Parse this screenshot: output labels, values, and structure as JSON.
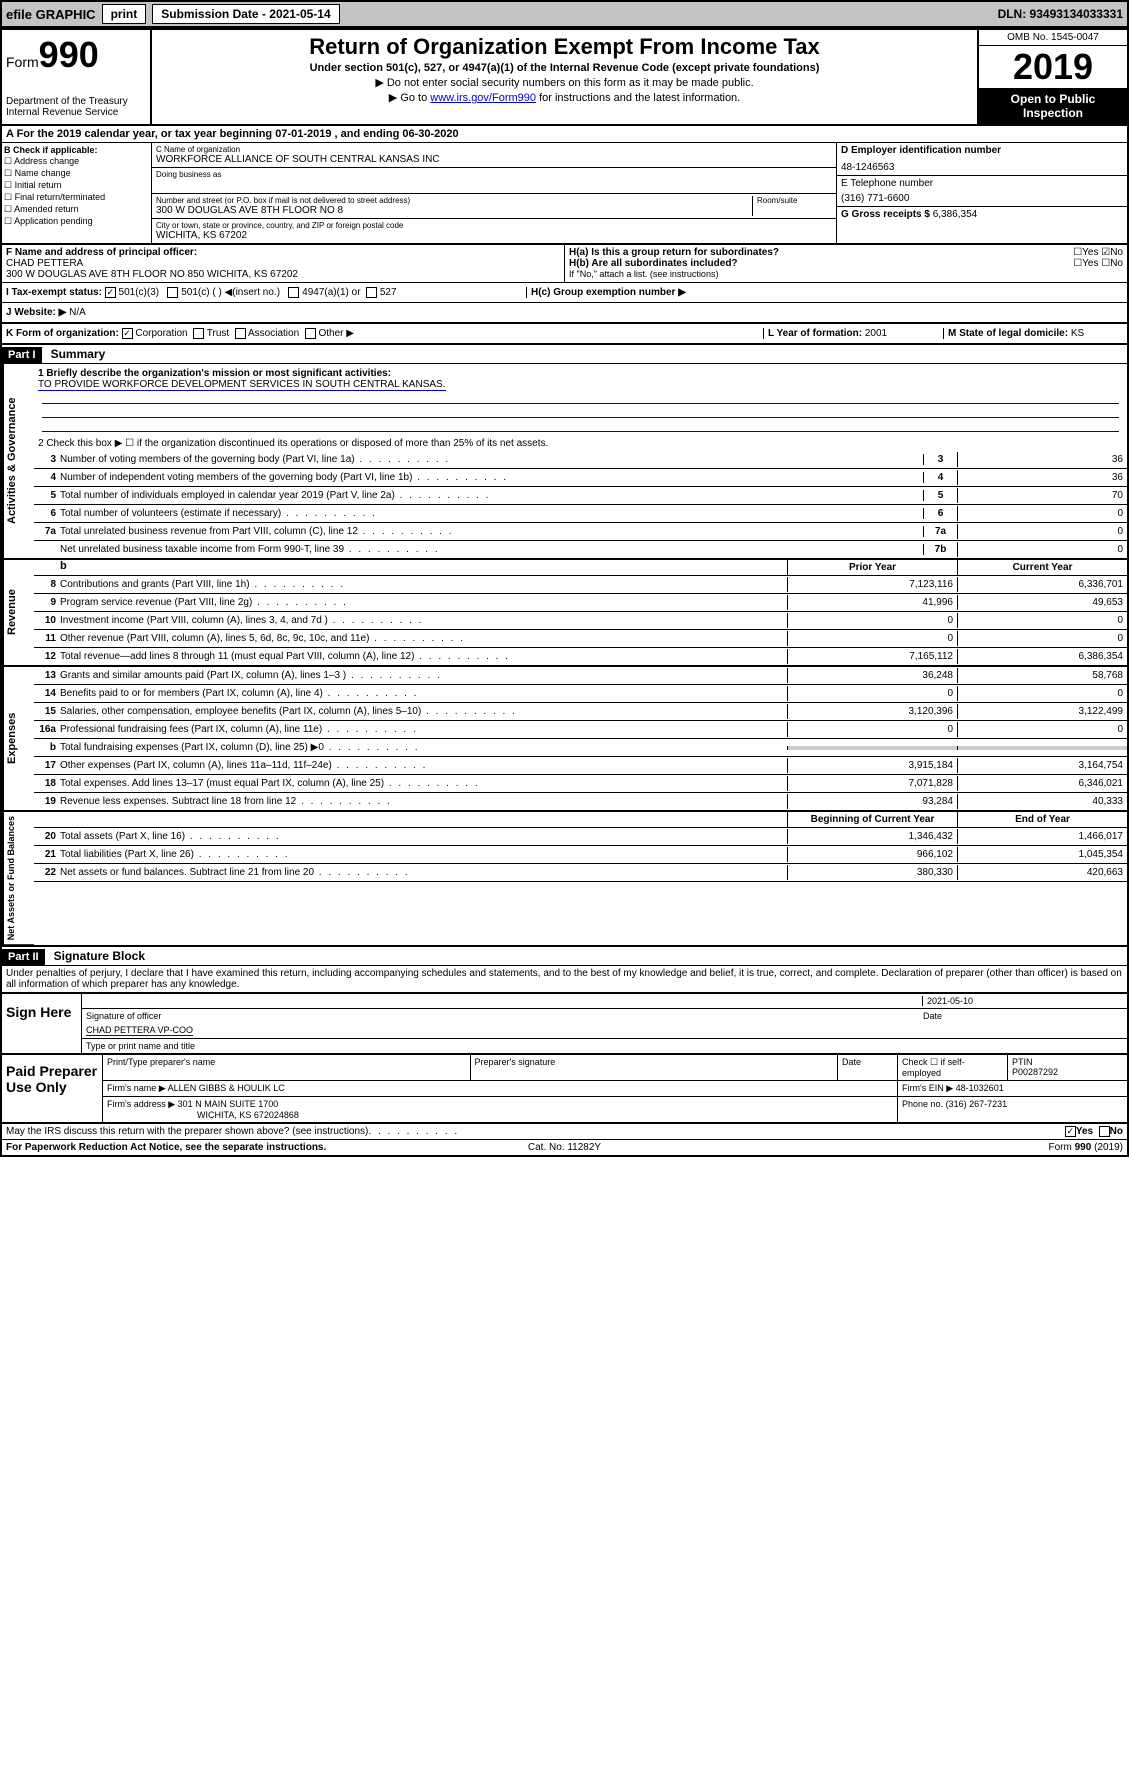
{
  "topbar": {
    "efile": "efile GRAPHIC",
    "print": "print",
    "subdate_lbl": "Submission Date - 2021-05-14",
    "dln": "DLN: 93493134033331"
  },
  "header": {
    "form_label": "Form",
    "form_num": "990",
    "dept": "Department of the Treasury Internal Revenue Service",
    "title": "Return of Organization Exempt From Income Tax",
    "subtitle": "Under section 501(c), 527, or 4947(a)(1) of the Internal Revenue Code (except private foundations)",
    "note1": "▶ Do not enter social security numbers on this form as it may be made public.",
    "note2_pre": "▶ Go to ",
    "note2_link": "www.irs.gov/Form990",
    "note2_post": " for instructions and the latest information.",
    "omb": "OMB No. 1545-0047",
    "year": "2019",
    "badge": "Open to Public Inspection"
  },
  "period": "A For the 2019 calendar year, or tax year beginning 07-01-2019   , and ending 06-30-2020",
  "boxB": {
    "title": "B Check if applicable:",
    "items": [
      "Address change",
      "Name change",
      "Initial return",
      "Final return/terminated",
      "Amended return",
      "Application pending"
    ]
  },
  "boxC": {
    "name_lbl": "C Name of organization",
    "name": "WORKFORCE ALLIANCE OF SOUTH CENTRAL KANSAS INC",
    "dba_lbl": "Doing business as",
    "addr_lbl": "Number and street (or P.O. box if mail is not delivered to street address)",
    "room_lbl": "Room/suite",
    "addr": "300 W DOUGLAS AVE 8TH FLOOR NO 8",
    "city_lbl": "City or town, state or province, country, and ZIP or foreign postal code",
    "city": "WICHITA, KS  67202"
  },
  "boxD": {
    "ein_lbl": "D Employer identification number",
    "ein": "48-1246563",
    "tel_lbl": "E Telephone number",
    "tel": "(316) 771-6600",
    "gross_lbl": "G Gross receipts $",
    "gross": "6,386,354"
  },
  "boxF": {
    "lbl": "F  Name and address of principal officer:",
    "name": "CHAD PETTERA",
    "addr": "300 W DOUGLAS AVE 8TH FLOOR NO 850 WICHITA, KS  67202"
  },
  "boxH": {
    "ha": "H(a)  Is this a group return for subordinates?",
    "hb": "H(b)  Are all subordinates included?",
    "hb_note": "If \"No,\" attach a list. (see instructions)",
    "hc": "H(c)  Group exemption number ▶"
  },
  "taxstatus": {
    "lbl": "I    Tax-exempt status:",
    "opt1": "501(c)(3)",
    "opt2": "501(c) (  ) ◀(insert no.)",
    "opt3": "4947(a)(1) or",
    "opt4": "527"
  },
  "website": {
    "lbl": "J   Website: ▶",
    "val": "N/A"
  },
  "boxK": {
    "lbl": "K Form of organization:",
    "corp": "Corporation",
    "trust": "Trust",
    "assoc": "Association",
    "other": "Other ▶",
    "yof_lbl": "L Year of formation:",
    "yof": "2001",
    "domicile_lbl": "M State of legal domicile:",
    "domicile": "KS"
  },
  "part1": {
    "hdr": "Part I",
    "title": "Summary",
    "l1_lbl": "1  Briefly describe the organization's mission or most significant activities:",
    "l1_val": "TO PROVIDE WORKFORCE DEVELOPMENT SERVICES IN SOUTH CENTRAL KANSAS.",
    "l2": "2   Check this box ▶ ☐  if the organization discontinued its operations or disposed of more than 25% of its net assets.",
    "governance_label": "Activities & Governance",
    "revenue_label": "Revenue",
    "expenses_label": "Expenses",
    "netassets_label": "Net Assets or Fund Balances",
    "prior_year": "Prior Year",
    "current_year": "Current Year",
    "begin_year": "Beginning of Current Year",
    "end_year": "End of Year",
    "lines_gov": [
      {
        "n": "3",
        "d": "Number of voting members of the governing body (Part VI, line 1a)",
        "box": "3",
        "v": "36"
      },
      {
        "n": "4",
        "d": "Number of independent voting members of the governing body (Part VI, line 1b)",
        "box": "4",
        "v": "36"
      },
      {
        "n": "5",
        "d": "Total number of individuals employed in calendar year 2019 (Part V, line 2a)",
        "box": "5",
        "v": "70"
      },
      {
        "n": "6",
        "d": "Total number of volunteers (estimate if necessary)",
        "box": "6",
        "v": "0"
      },
      {
        "n": "7a",
        "d": "Total unrelated business revenue from Part VIII, column (C), line 12",
        "box": "7a",
        "v": "0"
      },
      {
        "n": "",
        "d": "Net unrelated business taxable income from Form 990-T, line 39",
        "box": "7b",
        "v": "0"
      }
    ],
    "lines_rev": [
      {
        "n": "8",
        "d": "Contributions and grants (Part VIII, line 1h)",
        "py": "7,123,116",
        "cy": "6,336,701"
      },
      {
        "n": "9",
        "d": "Program service revenue (Part VIII, line 2g)",
        "py": "41,996",
        "cy": "49,653"
      },
      {
        "n": "10",
        "d": "Investment income (Part VIII, column (A), lines 3, 4, and 7d )",
        "py": "0",
        "cy": "0"
      },
      {
        "n": "11",
        "d": "Other revenue (Part VIII, column (A), lines 5, 6d, 8c, 9c, 10c, and 11e)",
        "py": "0",
        "cy": "0"
      },
      {
        "n": "12",
        "d": "Total revenue—add lines 8 through 11 (must equal Part VIII, column (A), line 12)",
        "py": "7,165,112",
        "cy": "6,386,354"
      }
    ],
    "lines_exp": [
      {
        "n": "13",
        "d": "Grants and similar amounts paid (Part IX, column (A), lines 1–3 )",
        "py": "36,248",
        "cy": "58,768"
      },
      {
        "n": "14",
        "d": "Benefits paid to or for members (Part IX, column (A), line 4)",
        "py": "0",
        "cy": "0"
      },
      {
        "n": "15",
        "d": "Salaries, other compensation, employee benefits (Part IX, column (A), lines 5–10)",
        "py": "3,120,396",
        "cy": "3,122,499"
      },
      {
        "n": "16a",
        "d": "Professional fundraising fees (Part IX, column (A), line 11e)",
        "py": "0",
        "cy": "0"
      },
      {
        "n": "b",
        "d": "Total fundraising expenses (Part IX, column (D), line 25) ▶0",
        "py": "",
        "cy": ""
      },
      {
        "n": "17",
        "d": "Other expenses (Part IX, column (A), lines 11a–11d, 11f–24e)",
        "py": "3,915,184",
        "cy": "3,164,754"
      },
      {
        "n": "18",
        "d": "Total expenses. Add lines 13–17 (must equal Part IX, column (A), line 25)",
        "py": "7,071,828",
        "cy": "6,346,021"
      },
      {
        "n": "19",
        "d": "Revenue less expenses. Subtract line 18 from line 12",
        "py": "93,284",
        "cy": "40,333"
      }
    ],
    "lines_net": [
      {
        "n": "20",
        "d": "Total assets (Part X, line 16)",
        "py": "1,346,432",
        "cy": "1,466,017"
      },
      {
        "n": "21",
        "d": "Total liabilities (Part X, line 26)",
        "py": "966,102",
        "cy": "1,045,354"
      },
      {
        "n": "22",
        "d": "Net assets or fund balances. Subtract line 21 from line 20",
        "py": "380,330",
        "cy": "420,663"
      }
    ]
  },
  "part2": {
    "hdr": "Part II",
    "title": "Signature Block",
    "decl": "Under penalties of perjury, I declare that I have examined this return, including accompanying schedules and statements, and to the best of my knowledge and belief, it is true, correct, and complete. Declaration of preparer (other than officer) is based on all information of which preparer has any knowledge."
  },
  "sign": {
    "here": "Sign Here",
    "sig_lbl": "Signature of officer",
    "date": "2021-05-10",
    "date_lbl": "Date",
    "name": "CHAD PETTERA  VP-COO",
    "name_lbl": "Type or print name and title"
  },
  "paid": {
    "lbl": "Paid Preparer Use Only",
    "col1": "Print/Type preparer's name",
    "col2": "Preparer's signature",
    "col3": "Date",
    "col4_lbl": "Check ☐ if self-employed",
    "col5_lbl": "PTIN",
    "ptin": "P00287292",
    "firm_lbl": "Firm's name    ▶",
    "firm": "ALLEN GIBBS & HOULIK LC",
    "ein_lbl": "Firm's EIN ▶",
    "ein": "48-1032601",
    "addr_lbl": "Firm's address ▶",
    "addr": "301 N MAIN SUITE 1700",
    "addr2": "WICHITA, KS  672024868",
    "phone_lbl": "Phone no.",
    "phone": "(316) 267-7231"
  },
  "footer": {
    "q": "May the IRS discuss this return with the preparer shown above? (see instructions)",
    "yes": "Yes",
    "no": "No",
    "pra": "For Paperwork Reduction Act Notice, see the separate instructions.",
    "cat": "Cat. No. 11282Y",
    "form": "Form 990 (2019)"
  },
  "colors": {
    "link": "#0000cc",
    "topbar_bg": "#c4c4c4"
  }
}
